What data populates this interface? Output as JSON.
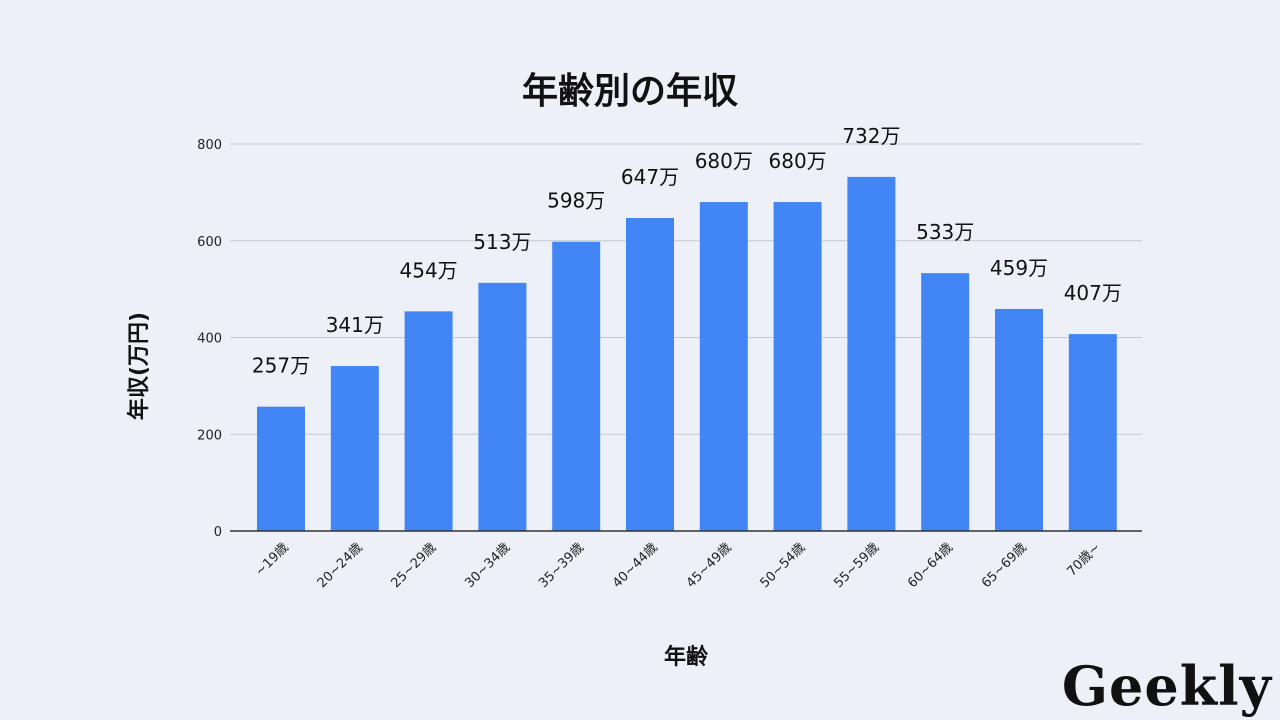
{
  "chart_data": {
    "type": "bar",
    "title": "年齢別の年収",
    "xlabel": "年齢",
    "ylabel": "年収(万円)",
    "categories": [
      "~19歳",
      "20~24歳",
      "25~29歳",
      "30~34歳",
      "35~39歳",
      "40~44歳",
      "45~49歳",
      "50~54歳",
      "55~59歳",
      "60~64歳",
      "65~69歳",
      "70歳~"
    ],
    "values": [
      257,
      341,
      454,
      513,
      598,
      647,
      680,
      680,
      732,
      533,
      459,
      407
    ],
    "data_labels": [
      "257万",
      "341万",
      "454万",
      "513万",
      "598万",
      "647万",
      "680万",
      "680万",
      "732万",
      "533万",
      "459万",
      "407万"
    ],
    "ylim": [
      0,
      800
    ],
    "yticks": [
      "0",
      "200",
      "400",
      "600",
      "800"
    ],
    "grid": true,
    "bar_color": "#4285f4"
  },
  "brand": {
    "logo_text": "Geekly"
  }
}
